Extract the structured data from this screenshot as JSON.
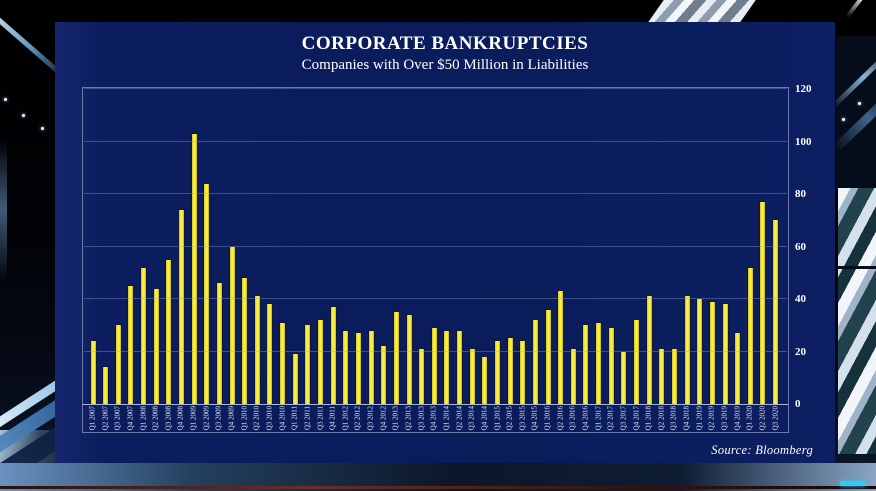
{
  "header": {
    "title": "CORPORATE BANKRUPTCIES",
    "subtitle": "Companies with Over $50 Million in Liabilities"
  },
  "source_label": "Source:  Bloomberg",
  "colors": {
    "panel_navy": "#0b1d5e",
    "bar_yellow": "#f6e93a",
    "gridline": "#8fa3cc",
    "text_white": "#ffffff"
  },
  "chart_data": {
    "type": "bar",
    "title": "CORPORATE BANKRUPTCIES",
    "subtitle": "Companies with Over $50 Million in Liabilities",
    "source": "Bloomberg",
    "xlabel": "",
    "ylabel": "",
    "ylim": [
      0,
      120
    ],
    "yticks": [
      0,
      20,
      40,
      60,
      80,
      100,
      120
    ],
    "ytick_side": "right",
    "grid": "horizontal",
    "legend": "none",
    "categories": [
      "Q1 2007",
      "Q2 2007",
      "Q3 2007",
      "Q4 2007",
      "Q1 2008",
      "Q2 2008",
      "Q3 2008",
      "Q4 2008",
      "Q1 2009",
      "Q2 2009",
      "Q3 2009",
      "Q4 2009",
      "Q1 2010",
      "Q2 2010",
      "Q3 2010",
      "Q4 2010",
      "Q1 2011",
      "Q2 2011",
      "Q3 2011",
      "Q4 2011",
      "Q1 2012",
      "Q2 2012",
      "Q3 2012",
      "Q4 2012",
      "Q1 2013",
      "Q2 2013",
      "Q3 2013",
      "Q4 2013",
      "Q1 2014",
      "Q2 2014",
      "Q3 2014",
      "Q4 2014",
      "Q1 2015",
      "Q2 2015",
      "Q3 2015",
      "Q4 2015",
      "Q1 2016",
      "Q2 2016",
      "Q3 2016",
      "Q4 2016",
      "Q1 2017",
      "Q2 2017",
      "Q3 2017",
      "Q4 2017",
      "Q1 2018",
      "Q2 2018",
      "Q3 2018",
      "Q4 2018",
      "Q1 2019",
      "Q2 2019",
      "Q3 2019",
      "Q4 2019",
      "Q1 2020",
      "Q2 2020",
      "Q3 2020"
    ],
    "values": [
      24,
      14,
      30,
      45,
      52,
      44,
      55,
      74,
      103,
      84,
      46,
      60,
      48,
      41,
      38,
      31,
      19,
      30,
      32,
      37,
      28,
      27,
      28,
      22,
      35,
      34,
      21,
      29,
      28,
      28,
      21,
      18,
      24,
      25,
      24,
      32,
      36,
      43,
      21,
      30,
      31,
      29,
      20,
      32,
      41,
      21,
      21,
      41,
      40,
      39,
      38,
      27,
      52,
      77,
      70
    ]
  }
}
